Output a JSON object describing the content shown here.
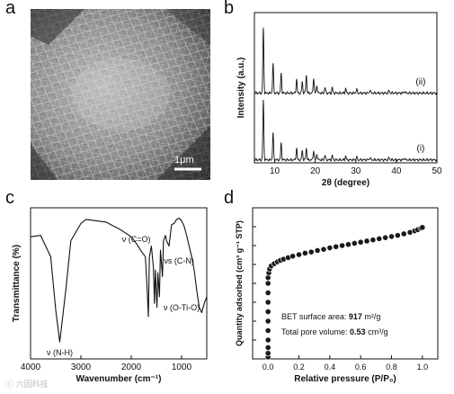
{
  "panels": {
    "a": {
      "label": "a",
      "scale_bar": "1μm"
    },
    "b": {
      "label": "b"
    },
    "c": {
      "label": "c"
    },
    "d": {
      "label": "d"
    }
  },
  "watermark": "ⓒ 六因科技",
  "chart_data": [
    {
      "panel": "b",
      "type": "line",
      "xlabel": "2θ (degree)",
      "ylabel": "Intensity (a.u.)",
      "xlim": [
        5,
        50
      ],
      "xticks": [
        10,
        20,
        30,
        40,
        50
      ],
      "grid": false,
      "series": [
        {
          "name": "(ii)",
          "peaks": [
            [
              7.2,
              1.0
            ],
            [
              9.6,
              0.45
            ],
            [
              11.6,
              0.3
            ],
            [
              15.4,
              0.22
            ],
            [
              16.8,
              0.18
            ],
            [
              17.8,
              0.28
            ],
            [
              19.6,
              0.24
            ],
            [
              20.4,
              0.12
            ],
            [
              22.4,
              0.09
            ],
            [
              24.2,
              0.08
            ],
            [
              27.5,
              0.07
            ],
            [
              30.2,
              0.06
            ],
            [
              33.5,
              0.05
            ],
            [
              38.2,
              0.04
            ],
            [
              42.0,
              0.03
            ]
          ]
        },
        {
          "name": "(i)",
          "peaks": [
            [
              7.2,
              1.0
            ],
            [
              9.6,
              0.45
            ],
            [
              11.6,
              0.28
            ],
            [
              15.4,
              0.2
            ],
            [
              16.8,
              0.16
            ],
            [
              17.8,
              0.2
            ],
            [
              19.6,
              0.16
            ],
            [
              20.4,
              0.1
            ],
            [
              22.4,
              0.08
            ],
            [
              24.2,
              0.07
            ],
            [
              27.5,
              0.06
            ],
            [
              30.2,
              0.05
            ],
            [
              33.5,
              0.04
            ],
            [
              38.2,
              0.04
            ],
            [
              42.0,
              0.03
            ]
          ]
        }
      ]
    },
    {
      "panel": "c",
      "type": "line",
      "xlabel": "Wavenumber (cm⁻¹)",
      "ylabel": "Transmittance (%)",
      "xlim": [
        4000,
        500
      ],
      "xticks": [
        4000,
        3000,
        2000,
        1000
      ],
      "grid": false,
      "annotations": [
        "ν (N-H)",
        "ν (C=O)",
        "νs (C-N)",
        "ν (O-Ti-O)"
      ],
      "series": [
        {
          "points": [
            [
              4000,
              0.85
            ],
            [
              3800,
              0.86
            ],
            [
              3600,
              0.7
            ],
            [
              3500,
              0.3
            ],
            [
              3420,
              0.06
            ],
            [
              3300,
              0.45
            ],
            [
              3200,
              0.82
            ],
            [
              3000,
              0.95
            ],
            [
              2900,
              0.98
            ],
            [
              2500,
              0.96
            ],
            [
              2200,
              0.9
            ],
            [
              2000,
              0.85
            ],
            [
              1900,
              0.8
            ],
            [
              1800,
              0.74
            ],
            [
              1720,
              0.7
            ],
            [
              1690,
              0.5
            ],
            [
              1660,
              0.25
            ],
            [
              1640,
              0.7
            ],
            [
              1600,
              0.78
            ],
            [
              1560,
              0.62
            ],
            [
              1540,
              0.35
            ],
            [
              1520,
              0.6
            ],
            [
              1490,
              0.32
            ],
            [
              1470,
              0.58
            ],
            [
              1440,
              0.4
            ],
            [
              1420,
              0.75
            ],
            [
              1380,
              0.55
            ],
            [
              1360,
              0.82
            ],
            [
              1320,
              0.86
            ],
            [
              1300,
              0.82
            ],
            [
              1250,
              0.78
            ],
            [
              1200,
              0.94
            ],
            [
              1150,
              0.95
            ],
            [
              1100,
              0.98
            ],
            [
              1050,
              0.99
            ],
            [
              1000,
              0.97
            ],
            [
              950,
              0.93
            ],
            [
              900,
              0.86
            ],
            [
              850,
              0.78
            ],
            [
              800,
              0.7
            ],
            [
              750,
              0.6
            ],
            [
              700,
              0.45
            ],
            [
              650,
              0.32
            ],
            [
              600,
              0.28
            ],
            [
              550,
              0.35
            ],
            [
              500,
              0.4
            ]
          ]
        }
      ]
    },
    {
      "panel": "d",
      "type": "scatter",
      "xlabel": "Relative pressure (P/P₀)",
      "ylabel": "Quantity adsorbed (cm³ g⁻¹ STP)",
      "xlim": [
        -0.1,
        1.1
      ],
      "ylim": [
        0,
        400
      ],
      "xticks": [
        0.0,
        0.2,
        0.4,
        0.6,
        0.8,
        1.0
      ],
      "yticks": [
        0,
        50,
        100,
        150,
        200,
        250,
        300,
        350,
        400
      ],
      "grid": false,
      "annotation_lines": [
        {
          "prefix": "BET surface area: ",
          "value": "917",
          "unit": " m²/g"
        },
        {
          "prefix": "Total pore volume: ",
          "value": "0.53",
          "unit": " cm³/g"
        }
      ],
      "series": [
        {
          "points": [
            [
              0.0,
              5
            ],
            [
              0.0,
              15
            ],
            [
              0.0,
              30
            ],
            [
              0.0,
              50
            ],
            [
              0.0,
              75
            ],
            [
              0.0,
              100
            ],
            [
              0.0,
              125
            ],
            [
              0.0,
              150
            ],
            [
              0.0,
              175
            ],
            [
              0.0,
              200
            ],
            [
              0.0,
              215
            ],
            [
              0.005,
              228
            ],
            [
              0.01,
              238
            ],
            [
              0.02,
              246
            ],
            [
              0.04,
              252
            ],
            [
              0.06,
              257
            ],
            [
              0.08,
              261
            ],
            [
              0.1,
              264
            ],
            [
              0.13,
              268
            ],
            [
              0.16,
              272
            ],
            [
              0.2,
              276
            ],
            [
              0.24,
              280
            ],
            [
              0.28,
              283
            ],
            [
              0.32,
              287
            ],
            [
              0.36,
              290
            ],
            [
              0.4,
              294
            ],
            [
              0.44,
              297
            ],
            [
              0.48,
              300
            ],
            [
              0.52,
              303
            ],
            [
              0.56,
              306
            ],
            [
              0.6,
              309
            ],
            [
              0.64,
              312
            ],
            [
              0.68,
              315
            ],
            [
              0.72,
              318
            ],
            [
              0.76,
              321
            ],
            [
              0.8,
              324
            ],
            [
              0.84,
              327
            ],
            [
              0.88,
              331
            ],
            [
              0.92,
              335
            ],
            [
              0.95,
              339
            ],
            [
              0.97,
              342
            ],
            [
              0.99,
              346
            ],
            [
              1.0,
              348
            ]
          ]
        }
      ]
    }
  ]
}
